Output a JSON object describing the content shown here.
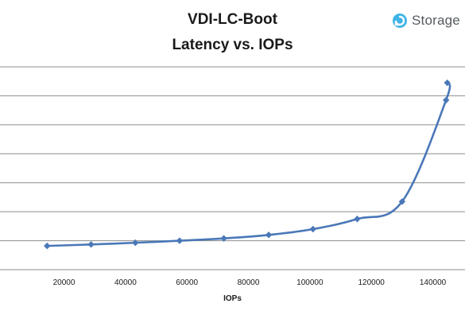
{
  "chart_data": {
    "type": "line",
    "title_line_1": "VDI-LC-Boot",
    "title_line_2": "Latency vs. IOPs",
    "xlabel": "IOPs",
    "ylabel": "",
    "xlim": [
      0,
      150000
    ],
    "x_ticks": [
      20000,
      40000,
      60000,
      80000,
      100000,
      120000,
      140000
    ],
    "ylim": [
      0,
      7
    ],
    "y_gridlines": [
      1,
      2,
      3,
      4,
      5,
      6,
      7
    ],
    "y_tick_labels_visible": false,
    "grid": "horizontal",
    "series_color": "#4a78b8",
    "gridline_color": "#8c8c8c",
    "series": [
      {
        "x": [
          14500,
          28800,
          43200,
          57600,
          72000,
          86600,
          101000,
          115400,
          130000,
          144300,
          144700
        ],
        "y": [
          0.82,
          0.87,
          0.93,
          1.0,
          1.08,
          1.2,
          1.4,
          1.75,
          2.35,
          5.85,
          6.45
        ]
      }
    ]
  },
  "logo": {
    "text": "Storage",
    "icon": "storagereview-logo-icon",
    "color": "#3fb4e6"
  }
}
